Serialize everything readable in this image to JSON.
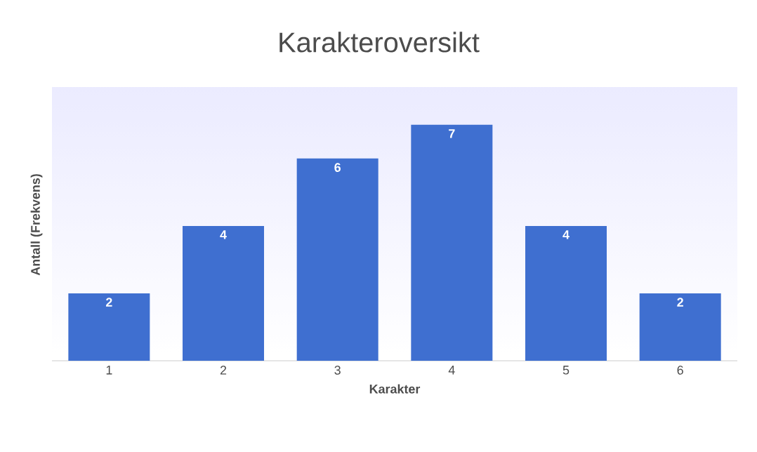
{
  "chart_data": {
    "type": "bar",
    "title": "Karakteroversikt",
    "xlabel": "Karakter",
    "ylabel": "Antall (Frekvens)",
    "categories": [
      "1",
      "2",
      "3",
      "4",
      "5",
      "6"
    ],
    "values": [
      2,
      4,
      6,
      7,
      4,
      2
    ],
    "color": "#3f6fd0",
    "data_labels": true
  }
}
